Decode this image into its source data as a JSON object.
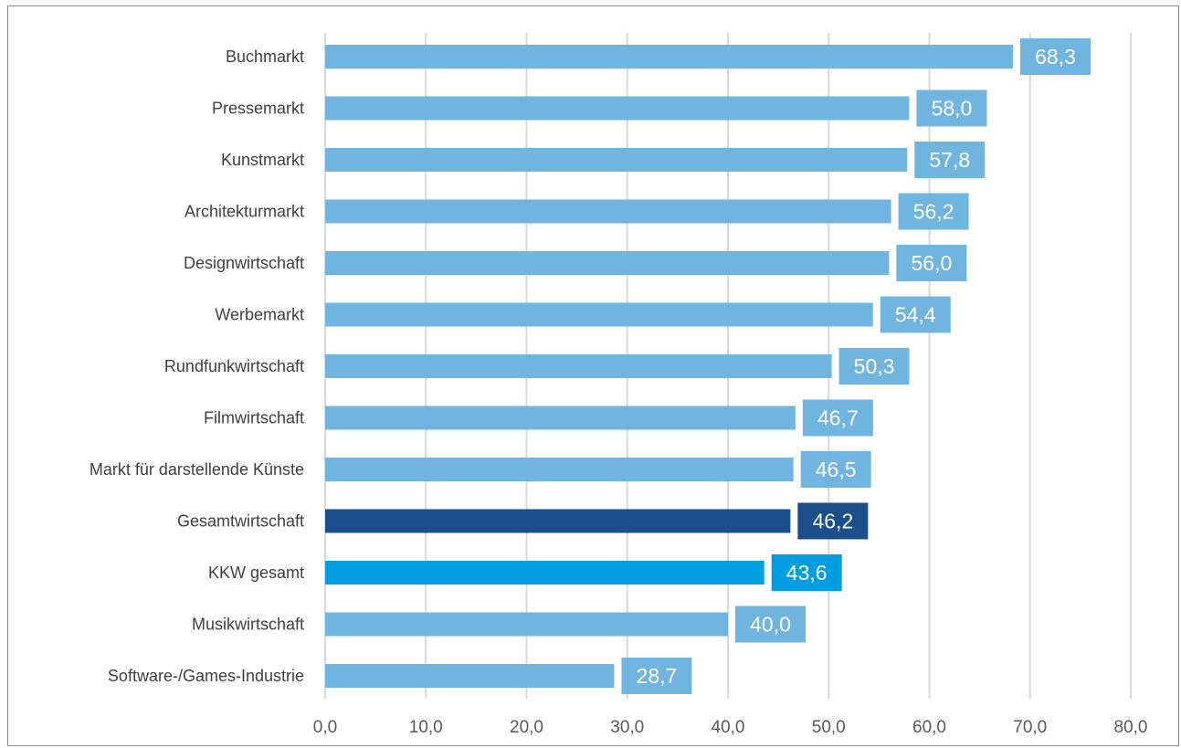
{
  "chart_data": {
    "type": "bar",
    "orientation": "horizontal",
    "categories": [
      "Buchmarkt",
      "Pressemarkt",
      "Kunstmarkt",
      "Architekturmarkt",
      "Designwirtschaft",
      "Werbemarkt",
      "Rundfunkwirtschaft",
      "Filmwirtschaft",
      "Markt für darstellende Künste",
      "Gesamtwirtschaft",
      "KKW gesamt",
      "Musikwirtschaft",
      "Software-/Games-Industrie"
    ],
    "values": [
      68.3,
      58.0,
      57.8,
      56.2,
      56.0,
      54.4,
      50.3,
      46.7,
      46.5,
      46.2,
      43.6,
      40.0,
      28.7
    ],
    "data_labels": [
      "68,3",
      "58,0",
      "57,8",
      "56,2",
      "56,0",
      "54,4",
      "50,3",
      "46,7",
      "46,5",
      "46,2",
      "43,6",
      "40,0",
      "28,7"
    ],
    "bar_colors": [
      "#70b4e0",
      "#70b4e0",
      "#70b4e0",
      "#70b4e0",
      "#70b4e0",
      "#70b4e0",
      "#70b4e0",
      "#70b4e0",
      "#70b4e0",
      "#1a4f8c",
      "#009de0",
      "#70b4e0",
      "#70b4e0"
    ],
    "xlim": [
      0,
      80
    ],
    "x_ticks": [
      0,
      10,
      20,
      30,
      40,
      50,
      60,
      70,
      80
    ],
    "x_tick_labels": [
      "0,0",
      "10,0",
      "20,0",
      "30,0",
      "40,0",
      "50,0",
      "60,0",
      "70,0",
      "80,0"
    ],
    "grid": "vertical",
    "legend": "none",
    "title": "",
    "xlabel": "",
    "ylabel": ""
  }
}
